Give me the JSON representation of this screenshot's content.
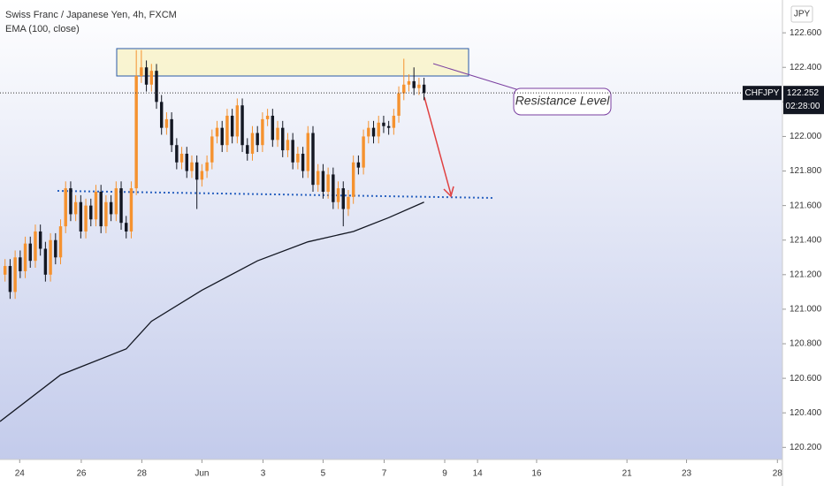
{
  "chart_data": {
    "type": "candlestick",
    "title": "Swiss Franc / Japanese Yen, 4h, FXCM",
    "symbol": "CHFJPY",
    "currency": "JPY",
    "countdown": "02:28:00",
    "annotation": "Resistance Level",
    "up_color": "#f5922f",
    "down_color": "#131722",
    "x": [
      1,
      2,
      3,
      4,
      5,
      6,
      7,
      8,
      9,
      10,
      11,
      12,
      13,
      14,
      15,
      16,
      17,
      18,
      19,
      20,
      21,
      22,
      23,
      24,
      25,
      26,
      27,
      28,
      29,
      30,
      31,
      32,
      33,
      34,
      35,
      36,
      37,
      38,
      39,
      40,
      41,
      42,
      43,
      44,
      45,
      46,
      47,
      48,
      49,
      50,
      51,
      52,
      53,
      54,
      55,
      56,
      57,
      58,
      59,
      60,
      61,
      62,
      63,
      64,
      65,
      66,
      67,
      68,
      69,
      70,
      71,
      72,
      73,
      74,
      75,
      76,
      77,
      78,
      79,
      80,
      81,
      82,
      83,
      84
    ],
    "open": [
      121.2,
      121.25,
      121.1,
      121.3,
      121.22,
      121.38,
      121.28,
      121.45,
      121.35,
      121.2,
      121.4,
      121.3,
      121.48,
      121.7,
      121.55,
      121.62,
      121.45,
      121.6,
      121.52,
      121.68,
      121.48,
      121.62,
      121.55,
      121.7,
      121.5,
      121.45,
      121.7,
      122.35,
      122.4,
      122.3,
      122.38,
      122.2,
      122.05,
      122.1,
      121.95,
      121.85,
      121.9,
      121.8,
      121.85,
      121.75,
      121.8,
      121.85,
      122.0,
      122.05,
      121.95,
      122.12,
      122.0,
      122.18,
      121.95,
      121.9,
      122.02,
      121.95,
      122.1,
      122.12,
      121.98,
      122.05,
      121.92,
      121.98,
      121.85,
      121.9,
      121.8,
      122.02,
      121.72,
      121.8,
      121.68,
      121.78,
      121.62,
      121.7,
      121.58,
      121.65,
      121.85,
      121.82,
      122.0,
      122.05,
      122.0,
      122.08,
      122.06,
      122.05,
      122.12,
      122.25,
      122.3,
      122.32,
      122.28,
      122.3
    ],
    "high": [
      121.29,
      121.29,
      121.34,
      121.34,
      121.42,
      121.42,
      121.49,
      121.49,
      121.39,
      121.44,
      121.44,
      121.52,
      121.74,
      121.74,
      121.66,
      121.66,
      121.64,
      121.64,
      121.72,
      121.72,
      121.66,
      121.66,
      121.74,
      121.74,
      121.54,
      121.74,
      122.5,
      122.5,
      122.44,
      122.42,
      122.42,
      122.24,
      122.14,
      122.14,
      121.99,
      121.94,
      121.94,
      121.89,
      121.89,
      121.84,
      121.89,
      122.04,
      122.09,
      122.09,
      122.16,
      122.16,
      122.22,
      122.22,
      121.99,
      122.06,
      122.06,
      122.14,
      122.16,
      122.16,
      122.09,
      122.09,
      122.02,
      122.02,
      121.94,
      121.94,
      122.06,
      122.06,
      121.84,
      121.84,
      121.82,
      121.82,
      121.74,
      121.74,
      121.69,
      121.89,
      121.89,
      122.04,
      122.09,
      122.09,
      122.12,
      122.12,
      122.09,
      122.16,
      122.29,
      122.45,
      122.36,
      122.4,
      122.34,
      122.34
    ],
    "low": [
      121.16,
      121.06,
      121.06,
      121.18,
      121.18,
      121.24,
      121.24,
      121.31,
      121.16,
      121.16,
      121.26,
      121.26,
      121.44,
      121.51,
      121.51,
      121.41,
      121.41,
      121.48,
      121.48,
      121.44,
      121.44,
      121.51,
      121.51,
      121.46,
      121.41,
      121.41,
      121.66,
      122.31,
      122.26,
      122.26,
      122.16,
      122.01,
      122.01,
      121.91,
      121.81,
      121.81,
      121.76,
      121.76,
      121.58,
      121.71,
      121.76,
      121.81,
      121.96,
      121.91,
      121.91,
      121.96,
      121.96,
      121.91,
      121.86,
      121.86,
      121.91,
      121.91,
      122.06,
      121.94,
      121.94,
      121.88,
      121.88,
      121.81,
      121.81,
      121.76,
      121.76,
      121.68,
      121.68,
      121.64,
      121.64,
      121.58,
      121.58,
      121.48,
      121.54,
      121.61,
      121.78,
      121.78,
      121.96,
      121.96,
      121.96,
      122.02,
      122.01,
      122.01,
      122.08,
      122.21,
      122.26,
      122.24,
      122.24,
      122.21
    ],
    "close": [
      121.25,
      121.1,
      121.3,
      121.22,
      121.38,
      121.28,
      121.45,
      121.35,
      121.2,
      121.4,
      121.3,
      121.48,
      121.7,
      121.55,
      121.62,
      121.45,
      121.6,
      121.52,
      121.68,
      121.48,
      121.62,
      121.55,
      121.7,
      121.5,
      121.45,
      121.7,
      122.35,
      122.4,
      122.3,
      122.38,
      122.2,
      122.05,
      122.1,
      121.95,
      121.85,
      121.9,
      121.8,
      121.85,
      121.75,
      121.8,
      121.85,
      122.0,
      122.05,
      121.95,
      122.12,
      122.0,
      122.18,
      121.95,
      121.9,
      122.02,
      121.95,
      122.1,
      122.12,
      121.98,
      122.05,
      121.92,
      121.98,
      121.85,
      121.9,
      121.8,
      122.02,
      121.72,
      121.8,
      121.68,
      121.78,
      121.62,
      121.7,
      121.58,
      121.65,
      121.85,
      121.82,
      122.0,
      122.05,
      122.0,
      122.08,
      122.06,
      122.05,
      122.12,
      122.25,
      122.3,
      122.32,
      122.28,
      122.3,
      122.252
    ],
    "ema": {
      "name": "EMA (100, close)",
      "color": "#131722",
      "x": [
        0,
        12,
        25,
        30,
        40,
        51,
        61,
        70,
        77,
        84
      ],
      "values": [
        120.35,
        120.62,
        120.77,
        120.93,
        121.11,
        121.28,
        121.39,
        121.45,
        121.53,
        121.62
      ]
    },
    "xlim": [
      0,
      155
    ],
    "xticks": [
      {
        "value": 3.9,
        "label": "24"
      },
      {
        "value": 16.1,
        "label": "26"
      },
      {
        "value": 28.1,
        "label": "28"
      },
      {
        "value": 40,
        "label": "Jun"
      },
      {
        "value": 52.1,
        "label": "3"
      },
      {
        "value": 64,
        "label": "5"
      },
      {
        "value": 76.1,
        "label": "7"
      },
      {
        "value": 88.1,
        "label": "9"
      },
      {
        "value": 94.6,
        "label": "14"
      },
      {
        "value": 106.3,
        "label": "16"
      },
      {
        "value": 124.2,
        "label": "21"
      },
      {
        "value": 136,
        "label": "23"
      },
      {
        "value": 154,
        "label": "28"
      }
    ],
    "ylim": [
      120.13,
      122.79
    ],
    "yticks": [
      {
        "value": 120.2,
        "label": "120.200"
      },
      {
        "value": 120.4,
        "label": "120.400"
      },
      {
        "value": 120.6,
        "label": "120.600"
      },
      {
        "value": 120.8,
        "label": "120.800"
      },
      {
        "value": 121,
        "label": "121.000"
      },
      {
        "value": 121.2,
        "label": "121.200"
      },
      {
        "value": 121.4,
        "label": "121.400"
      },
      {
        "value": 121.6,
        "label": "121.600"
      },
      {
        "value": 121.8,
        "label": "121.800"
      },
      {
        "value": 122,
        "label": "122.000"
      },
      {
        "value": 122.2,
        "label": "122.200"
      },
      {
        "value": 122.4,
        "label": "122.400"
      },
      {
        "value": 122.6,
        "label": "122.600"
      }
    ]
  }
}
